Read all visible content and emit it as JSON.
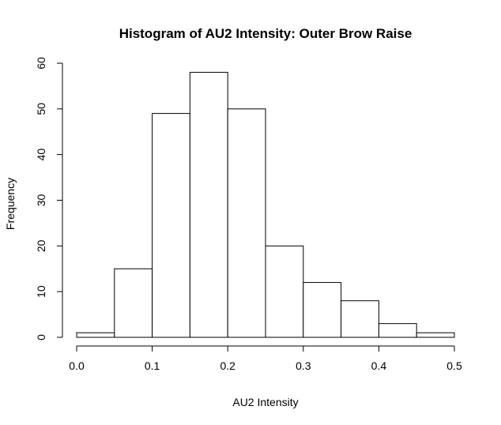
{
  "chart_data": {
    "type": "bar",
    "title": "Histogram of AU2 Intensity: Outer Brow Raise",
    "xlabel": "AU2 Intensity",
    "ylabel": "Frequency",
    "bins": [
      {
        "from": 0.0,
        "to": 0.05,
        "count": 1
      },
      {
        "from": 0.05,
        "to": 0.1,
        "count": 15
      },
      {
        "from": 0.1,
        "to": 0.15,
        "count": 49
      },
      {
        "from": 0.15,
        "to": 0.2,
        "count": 58
      },
      {
        "from": 0.2,
        "to": 0.25,
        "count": 50
      },
      {
        "from": 0.25,
        "to": 0.3,
        "count": 20
      },
      {
        "from": 0.3,
        "to": 0.35,
        "count": 12
      },
      {
        "from": 0.35,
        "to": 0.4,
        "count": 8
      },
      {
        "from": 0.4,
        "to": 0.45,
        "count": 3
      },
      {
        "from": 0.45,
        "to": 0.5,
        "count": 1
      }
    ],
    "xlim": [
      0,
      0.5
    ],
    "ylim": [
      0,
      60
    ],
    "xticks": [
      "0.0",
      "0.1",
      "0.2",
      "0.3",
      "0.4",
      "0.5"
    ],
    "yticks": [
      "0",
      "10",
      "20",
      "30",
      "40",
      "50",
      "60"
    ],
    "grid": false,
    "legend": "none"
  }
}
